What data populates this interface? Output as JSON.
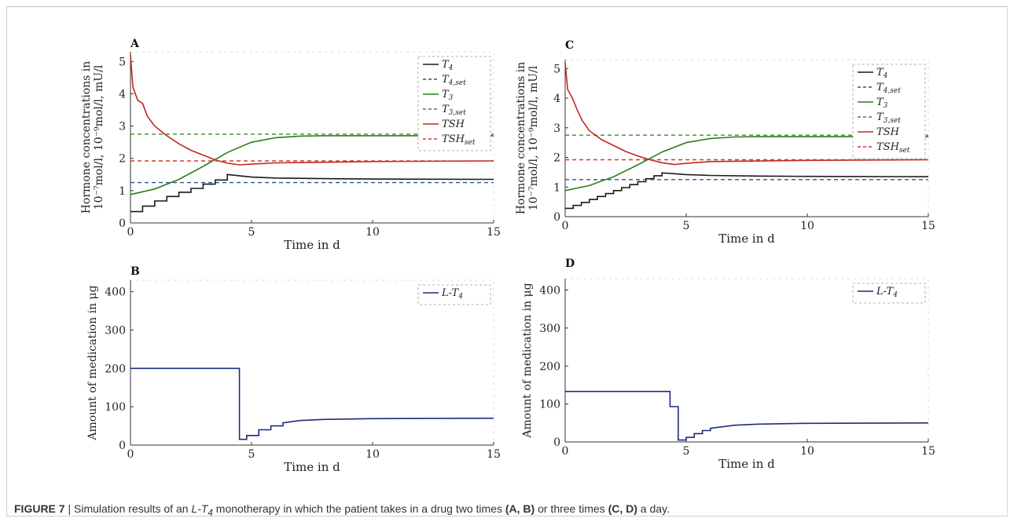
{
  "caption": {
    "label": "FIGURE 7",
    "separator": " | ",
    "text_1": "Simulation results of an ",
    "drug": "L-T",
    "drug_sub": "4",
    "text_2": " monotherapy in which the patient takes in a drug two times ",
    "refs_1": "(A, B)",
    "text_3": " or three times ",
    "refs_2": "(C, D)",
    "text_4": " a day."
  },
  "colors": {
    "T4": "#1a1a1a",
    "T4_set": "#1a1a1a",
    "T3": "#2e7d1e",
    "T3_set": "#3f8a2a",
    "TSH": "#c0281e",
    "TSH_set": "#d23a30",
    "TSH_set_dash": "#d23a30",
    "T4_blue_set": "#2a4fa0",
    "LT4": "#1f2d7a"
  },
  "chart_data": [
    {
      "panel": "A",
      "type": "line",
      "xlabel": "Time in d",
      "ylabel_line1": "Hormone concentrations in",
      "ylabel_line2": "10⁻⁷mol/l, 10⁻⁹mol/l, mU/l",
      "xlim": [
        0,
        15
      ],
      "ylim": [
        0,
        5.3
      ],
      "xticks": [
        "0",
        "5",
        "10",
        "15"
      ],
      "yticks": [
        "0",
        "1",
        "2",
        "3",
        "4",
        "5"
      ],
      "legend_position": "top-right",
      "legend": [
        "T4",
        "T4,set",
        "T3",
        "T3,set",
        "TSH",
        "TSHset"
      ],
      "series": [
        {
          "name": "T4",
          "kind": "step",
          "color_key": "T4",
          "dash": false,
          "x": [
            0,
            0.5,
            0.5,
            1.0,
            1.0,
            1.5,
            1.5,
            2.0,
            2.0,
            2.5,
            2.5,
            3.0,
            3.0,
            3.5,
            3.5,
            4.0,
            4.0,
            4.5,
            5.0,
            6,
            8,
            10,
            15
          ],
          "y": [
            0.35,
            0.35,
            0.52,
            0.52,
            0.68,
            0.68,
            0.82,
            0.82,
            0.95,
            0.95,
            1.07,
            1.07,
            1.2,
            1.2,
            1.33,
            1.33,
            1.5,
            1.46,
            1.42,
            1.39,
            1.37,
            1.36,
            1.35
          ]
        },
        {
          "name": "T4,set",
          "kind": "line",
          "color_key": "T4_blue_set",
          "dash": true,
          "x": [
            0,
            15
          ],
          "y": [
            1.25,
            1.25
          ]
        },
        {
          "name": "T3",
          "kind": "line",
          "color_key": "T3",
          "dash": false,
          "x": [
            0,
            1,
            2,
            3,
            4,
            5,
            6,
            7,
            8,
            10,
            12,
            15
          ],
          "y": [
            0.88,
            1.05,
            1.35,
            1.75,
            2.18,
            2.5,
            2.64,
            2.69,
            2.7,
            2.7,
            2.7,
            2.7
          ]
        },
        {
          "name": "T3,set",
          "kind": "line",
          "color_key": "T3_set",
          "dash": true,
          "x": [
            0,
            15
          ],
          "y": [
            2.75,
            2.75
          ]
        },
        {
          "name": "TSH",
          "kind": "line",
          "color_key": "TSH",
          "dash": false,
          "x": [
            0,
            0.1,
            0.3,
            0.5,
            0.7,
            1.0,
            1.5,
            2.0,
            2.5,
            3.0,
            3.5,
            4.0,
            4.5,
            5.0,
            6.0,
            8.0,
            10,
            15
          ],
          "y": [
            5.2,
            4.2,
            3.8,
            3.7,
            3.3,
            3.0,
            2.7,
            2.45,
            2.25,
            2.1,
            1.95,
            1.85,
            1.8,
            1.82,
            1.86,
            1.88,
            1.9,
            1.92
          ]
        },
        {
          "name": "TSHset",
          "kind": "line",
          "color_key": "TSH_set",
          "dash": true,
          "x": [
            0,
            15
          ],
          "y": [
            1.92,
            1.92
          ]
        }
      ]
    },
    {
      "panel": "B",
      "type": "line",
      "xlabel": "Time in d",
      "ylabel_line1": "Amount of medication in μg",
      "xlim": [
        0,
        15
      ],
      "ylim": [
        0,
        430
      ],
      "xticks": [
        "0",
        "5",
        "10",
        "15"
      ],
      "yticks": [
        "0",
        "100",
        "200",
        "300",
        "400"
      ],
      "legend_position": "top-right",
      "legend": [
        "L-T4"
      ],
      "series": [
        {
          "name": "L-T4",
          "kind": "step",
          "color_key": "LT4",
          "dash": false,
          "x": [
            0,
            4.5,
            4.5,
            4.8,
            4.8,
            5.3,
            5.3,
            5.8,
            5.8,
            6.3,
            6.3,
            7,
            8,
            10,
            15
          ],
          "y": [
            200,
            200,
            15,
            15,
            25,
            25,
            40,
            40,
            50,
            50,
            58,
            64,
            67,
            69,
            70
          ]
        }
      ]
    },
    {
      "panel": "C",
      "type": "line",
      "xlabel": "Time in d",
      "ylabel_line1": "Hormone concentrations in",
      "ylabel_line2": "10⁻⁷mol/l, 10⁻⁹mol/l, mU/l",
      "xlim": [
        0,
        15
      ],
      "ylim": [
        0,
        5.3
      ],
      "xticks": [
        "0",
        "5",
        "10",
        "15"
      ],
      "yticks": [
        "0",
        "1",
        "2",
        "3",
        "4",
        "5"
      ],
      "legend_position": "top-right",
      "legend": [
        "T4",
        "T4,set",
        "T3",
        "T3,set",
        "TSH",
        "TSHset"
      ],
      "series": [
        {
          "name": "T4",
          "kind": "step",
          "color_key": "T4",
          "dash": false,
          "x": [
            0,
            0.33,
            0.33,
            0.67,
            0.67,
            1.0,
            1.0,
            1.33,
            1.33,
            1.67,
            1.67,
            2.0,
            2.0,
            2.33,
            2.33,
            2.67,
            2.67,
            3.0,
            3.0,
            3.33,
            3.33,
            3.67,
            3.67,
            4.0,
            4.0,
            4.5,
            5.0,
            6,
            8,
            10,
            15
          ],
          "y": [
            0.28,
            0.28,
            0.38,
            0.38,
            0.48,
            0.48,
            0.58,
            0.58,
            0.68,
            0.68,
            0.78,
            0.78,
            0.88,
            0.88,
            0.98,
            0.98,
            1.08,
            1.08,
            1.18,
            1.18,
            1.28,
            1.28,
            1.38,
            1.38,
            1.48,
            1.45,
            1.42,
            1.39,
            1.37,
            1.36,
            1.35
          ]
        },
        {
          "name": "T4,set",
          "kind": "line",
          "color_key": "T4_blue_set",
          "dash": true,
          "x": [
            0,
            15
          ],
          "y": [
            1.25,
            1.25
          ]
        },
        {
          "name": "T3",
          "kind": "line",
          "color_key": "T3",
          "dash": false,
          "x": [
            0,
            1,
            2,
            3,
            4,
            5,
            6,
            7,
            8,
            10,
            12,
            15
          ],
          "y": [
            0.88,
            1.05,
            1.35,
            1.75,
            2.18,
            2.5,
            2.64,
            2.69,
            2.7,
            2.7,
            2.7,
            2.7
          ]
        },
        {
          "name": "T3,set",
          "kind": "line",
          "color_key": "T3_set",
          "dash": true,
          "x": [
            0,
            15
          ],
          "y": [
            2.75,
            2.75
          ]
        },
        {
          "name": "TSH",
          "kind": "line",
          "color_key": "TSH",
          "dash": false,
          "x": [
            0,
            0.1,
            0.3,
            0.5,
            0.7,
            1.0,
            1.5,
            2.0,
            2.5,
            3.0,
            3.5,
            4.0,
            4.5,
            5.0,
            6.0,
            8.0,
            10,
            15
          ],
          "y": [
            5.2,
            4.3,
            4.0,
            3.6,
            3.25,
            2.9,
            2.6,
            2.4,
            2.2,
            2.05,
            1.92,
            1.82,
            1.76,
            1.8,
            1.86,
            1.88,
            1.9,
            1.92
          ]
        },
        {
          "name": "TSHset",
          "kind": "line",
          "color_key": "TSH_set",
          "dash": true,
          "x": [
            0,
            15
          ],
          "y": [
            1.92,
            1.92
          ]
        }
      ]
    },
    {
      "panel": "D",
      "type": "line",
      "xlabel": "Time in d",
      "ylabel_line1": "Amount of medication in μg",
      "xlim": [
        0,
        15
      ],
      "ylim": [
        0,
        430
      ],
      "xticks": [
        "0",
        "5",
        "10",
        "15"
      ],
      "yticks": [
        "0",
        "100",
        "200",
        "300",
        "400"
      ],
      "legend_position": "top-right",
      "legend": [
        "L-T4"
      ],
      "series": [
        {
          "name": "L-T4",
          "kind": "step",
          "color_key": "LT4",
          "dash": false,
          "x": [
            0,
            4.33,
            4.33,
            4.67,
            4.67,
            5.0,
            5.0,
            5.33,
            5.33,
            5.67,
            5.67,
            6.0,
            6.0,
            6.5,
            7,
            8,
            10,
            15
          ],
          "y": [
            133,
            133,
            93,
            93,
            5,
            5,
            12,
            12,
            22,
            22,
            30,
            30,
            36,
            40,
            44,
            47,
            49,
            50
          ]
        }
      ]
    }
  ]
}
